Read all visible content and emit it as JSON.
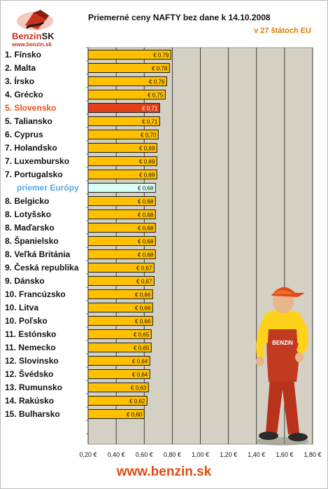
{
  "header": {
    "title": "Priemerné ceny NAFTY bez dane k 14.10.2008",
    "subtitle": "v 27 štátoch EU"
  },
  "logo": {
    "word_main": "Benzin",
    "word_suffix": "SK",
    "url": "www.benzin.sk"
  },
  "footer": {
    "url": "www.benzin.sk"
  },
  "colors": {
    "bar": "#ffc000",
    "bar_highlight": "#e23f1a",
    "bar_average": "#d8fff4",
    "plot_background": "#d4d0c4",
    "label_highlight": "#e85019",
    "label_average": "#56a9e8"
  },
  "chart_data": {
    "type": "bar",
    "orientation": "horizontal",
    "title": "Priemerné ceny NAFTY bez dane k 14.10.2008",
    "subtitle": "v 27 štátoch EU",
    "xlim": [
      0.2,
      1.8
    ],
    "x_ticks": [
      "0,20 €",
      "0,40 €",
      "0,60 €",
      "0,80 €",
      "1,00 €",
      "1,20 €",
      "1,40 €",
      "1,60 €",
      "1,80 €"
    ],
    "x_tick_values": [
      0.2,
      0.4,
      0.6,
      0.8,
      1.0,
      1.2,
      1.4,
      1.6,
      1.8
    ],
    "grid": true,
    "categories": [
      "1. Fínsko",
      "2. Malta",
      "3. Írsko",
      "4. Grécko",
      "5. Slovensko",
      "5. Taliansko",
      "6. Cyprus",
      "7. Holandsko",
      "7. Luxembursko",
      "7. Portugalsko",
      "priemer Európy",
      "8. Belgicko",
      "8. Lotyšsko",
      "8. Maďarsko",
      "8. Španielsko",
      "8. Veľká Británia",
      "9. Česká republika",
      "9. Dánsko",
      "10. Francúzsko",
      "10. Litva",
      "10. Poľsko",
      "11. Estónsko",
      "11. Nemecko",
      "12. Slovinsko",
      "12. Švédsko",
      "13. Rumunsko",
      "14. Rakúsko",
      "15. Bulharsko"
    ],
    "values": [
      0.79,
      0.78,
      0.76,
      0.75,
      0.71,
      0.71,
      0.7,
      0.69,
      0.69,
      0.69,
      0.68,
      0.68,
      0.68,
      0.68,
      0.68,
      0.68,
      0.67,
      0.67,
      0.66,
      0.66,
      0.66,
      0.65,
      0.65,
      0.64,
      0.64,
      0.63,
      0.62,
      0.6
    ],
    "value_labels": [
      "€ 0,79",
      "€ 0,78",
      "€ 0,76",
      "€ 0,75",
      "€ 0,71",
      "€ 0,71",
      "€ 0,70",
      "€ 0,69",
      "€ 0,69",
      "€ 0,69",
      "€ 0,68",
      "€ 0,68",
      "€ 0,68",
      "€ 0,68",
      "€ 0,68",
      "€ 0,68",
      "€ 0,67",
      "€ 0,67",
      "€ 0,66",
      "€ 0,66",
      "€ 0,66",
      "€ 0,65",
      "€ 0,65",
      "€ 0,64",
      "€ 0,64",
      "€ 0,63",
      "€ 0,62",
      "€ 0,60"
    ],
    "highlight_index": 4,
    "average_index": 10
  }
}
